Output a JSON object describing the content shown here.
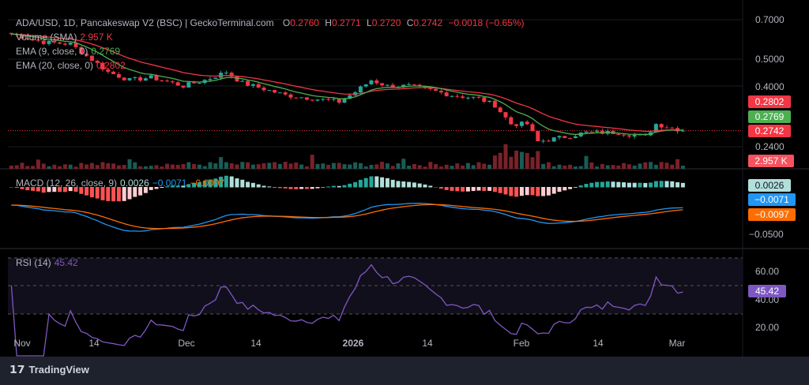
{
  "header": {
    "symbol": "ADA/USD, 1D, Pancakeswap V2 (BSC) | GeckoTerminal.com",
    "o_label": "O",
    "o": "0.2760",
    "h_label": "H",
    "h": "0.2771",
    "l_label": "L",
    "l": "0.2720",
    "c_label": "C",
    "c": "0.2742",
    "change": "−0.0018 (−0.65%)"
  },
  "indicators": {
    "volume": {
      "label": "Volume (SMA)",
      "value": "2.957 K"
    },
    "ema9": {
      "label": "EMA (9, close, 0)",
      "value": "0.2769"
    },
    "ema20": {
      "label": "EMA (20, close, 0)",
      "value": "0.2802"
    },
    "macd": {
      "label": "MACD (12, 26, close, 9)",
      "hist": "0.0026",
      "macd": "−0.0071",
      "signal": "−0.0097"
    },
    "rsi": {
      "label": "RSI (14)",
      "value": "45.42"
    }
  },
  "price_axis": [
    "0.7000",
    "0.5000",
    "0.4000",
    "0.2400"
  ],
  "macd_axis": [
    "−0.0500"
  ],
  "rsi_axis": [
    "60.00",
    "40.00",
    "20.00"
  ],
  "tags": {
    "ema20": "0.2802",
    "ema9": "0.2769",
    "price": "0.2742",
    "volume": "2.957 K",
    "hist": "0.0026",
    "macd": "−0.0071",
    "signal": "−0.0097",
    "rsi": "45.42"
  },
  "time_axis": [
    "Nov",
    "14",
    "Dec",
    "14",
    "2026",
    "14",
    "Feb",
    "14",
    "Mar"
  ],
  "colors": {
    "up": "#26a69a",
    "down": "#f23645",
    "ema9": "#4caf50",
    "ema20": "#f23645",
    "macd": "#2196f3",
    "signal": "#ff6d00",
    "rsi": "#7e57c2"
  },
  "chart_data": {
    "type": "candlestick",
    "price_scale": "log",
    "approx_close_waypoints": [
      [
        "Oct 30",
        0.62
      ],
      [
        "Nov 5",
        0.58
      ],
      [
        "Nov 10",
        0.57
      ],
      [
        "Nov 14",
        0.5
      ],
      [
        "Nov 17",
        0.45
      ],
      [
        "Nov 21",
        0.42
      ],
      [
        "Nov 25",
        0.43
      ],
      [
        "Dec 1",
        0.4
      ],
      [
        "Dec 5",
        0.42
      ],
      [
        "Dec 9",
        0.45
      ],
      [
        "Dec 12",
        0.41
      ],
      [
        "Dec 16",
        0.39
      ],
      [
        "Dec 20",
        0.37
      ],
      [
        "Dec 25",
        0.36
      ],
      [
        "Dec 30",
        0.35
      ],
      [
        "Jan 2",
        0.38
      ],
      [
        "Jan 5",
        0.42
      ],
      [
        "Jan 8",
        0.4
      ],
      [
        "Jan 12",
        0.4
      ],
      [
        "Jan 15",
        0.39
      ],
      [
        "Jan 20",
        0.37
      ],
      [
        "Jan 25",
        0.36
      ],
      [
        "Jan 28",
        0.34
      ],
      [
        "Jan 31",
        0.29
      ],
      [
        "Feb 3",
        0.29
      ],
      [
        "Feb 5",
        0.25
      ],
      [
        "Feb 10",
        0.26
      ],
      [
        "Feb 14",
        0.27
      ],
      [
        "Feb 20",
        0.27
      ],
      [
        "Feb 25",
        0.26
      ],
      [
        "Feb 27",
        0.29
      ],
      [
        "Mar 4",
        0.2742
      ]
    ]
  },
  "branding": {
    "name": "TradingView"
  }
}
